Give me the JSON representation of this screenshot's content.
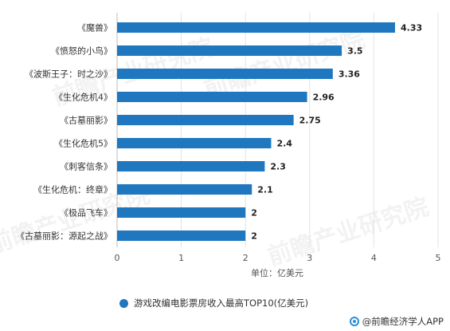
{
  "chart_data": {
    "type": "bar",
    "orientation": "horizontal",
    "categories": [
      "《魔兽》",
      "《愤怒的小鸟》",
      "《波斯王子：时之沙》",
      "《生化危机4》",
      "《古墓丽影》",
      "《生化危机5》",
      "《刺客信条》",
      "《生化危机：终章》",
      "《极品飞车》",
      "《古墓丽影：源起之战》"
    ],
    "values": [
      4.33,
      3.5,
      3.36,
      2.96,
      2.75,
      2.4,
      2.3,
      2.1,
      2,
      2
    ],
    "value_labels": [
      "4.33",
      "3.5",
      "3.36",
      "2.96",
      "2.75",
      "2.4",
      "2.3",
      "2.1",
      "2",
      "2"
    ],
    "xlim": [
      0,
      5
    ],
    "xticks": [
      "0",
      "1",
      "2",
      "3",
      "4",
      "5"
    ],
    "xlabel": "单位：亿美元",
    "legend": "游戏改编电影票房收入最高TOP10(亿美元)",
    "legend_position": "bottom",
    "grid": "vertical",
    "bar_color": "#1f77c0"
  },
  "source_text": "@前瞻经济学人APP",
  "watermark_text": "前瞻产业研究院"
}
